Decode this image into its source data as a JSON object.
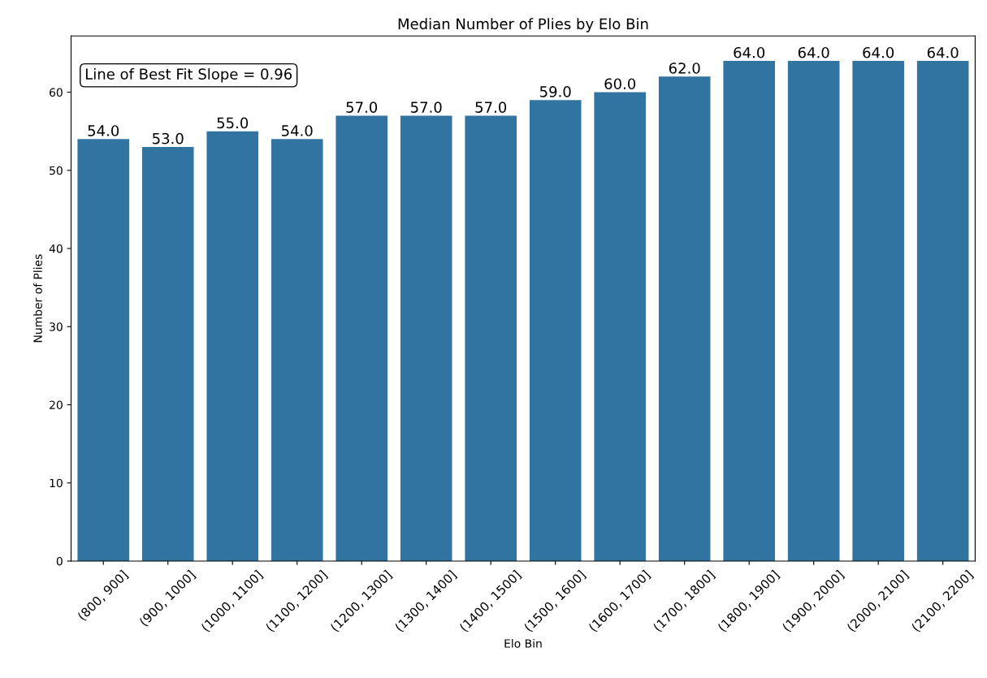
{
  "chart_data": {
    "type": "bar",
    "title": "Median Number of Plies by Elo Bin",
    "xlabel": "Elo Bin",
    "ylabel": "Number of Plies",
    "categories": [
      "(800, 900]",
      "(900, 1000]",
      "(1000, 1100]",
      "(1100, 1200]",
      "(1200, 1300]",
      "(1300, 1400]",
      "(1400, 1500]",
      "(1500, 1600]",
      "(1600, 1700]",
      "(1700, 1800]",
      "(1800, 1900]",
      "(1900, 2000]",
      "(2000, 2100]",
      "(2100, 2200]"
    ],
    "values": [
      54,
      53,
      55,
      54,
      57,
      57,
      57,
      59,
      60,
      62,
      64,
      64,
      64,
      64
    ],
    "value_labels": [
      "54.0",
      "53.0",
      "55.0",
      "54.0",
      "57.0",
      "57.0",
      "57.0",
      "59.0",
      "60.0",
      "62.0",
      "64.0",
      "64.0",
      "64.0",
      "64.0"
    ],
    "color": "#3274a1",
    "ylim": [
      0,
      67.2
    ],
    "yticks": [
      0,
      10,
      20,
      30,
      40,
      50,
      60
    ],
    "annotations": [
      "Line of Best Fit Slope = 0.96"
    ],
    "grid": false,
    "legend": false
  }
}
